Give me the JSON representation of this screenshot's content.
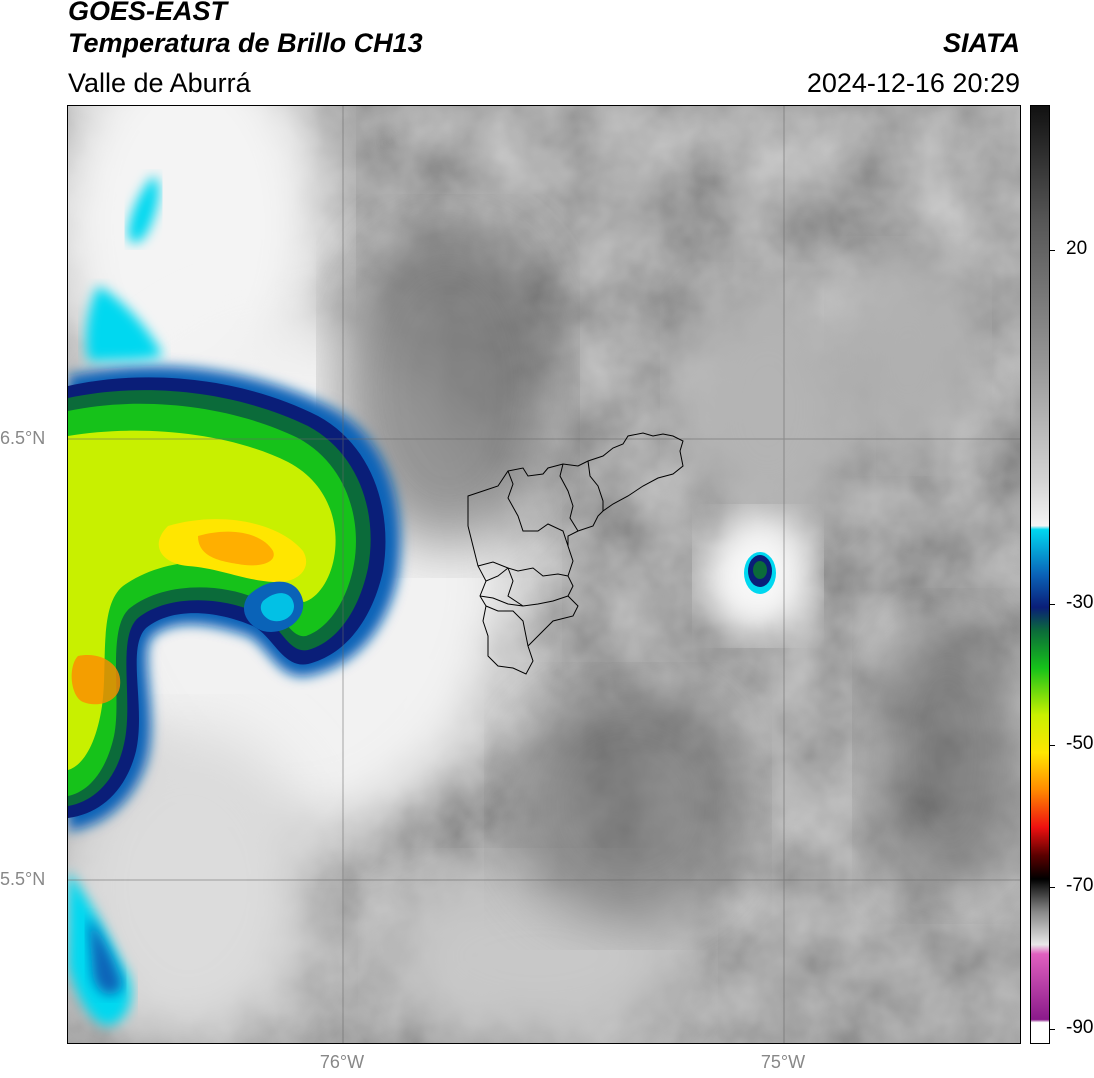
{
  "header": {
    "satellite": "GOES-EAST",
    "product": "Temperatura de Brillo CH13",
    "region": "Valle de Aburrá",
    "agency": "SIATA",
    "datetime": "2024-12-16 20:29"
  },
  "map": {
    "lat_labels": [
      "6.5°N",
      "5.5°N"
    ],
    "lon_labels": [
      "76°W",
      "75°W"
    ],
    "grid": true,
    "basemap": "grayscale-cloud-top-brightness-temperature",
    "overlay": "valle-de-aburra-municipal-boundaries"
  },
  "colorbar": {
    "tick_labels": [
      "20",
      "-30",
      "-50",
      "-70",
      "-90"
    ],
    "colors": {
      "warm_black": "#111111",
      "mid_gray": "#888888",
      "light_gray": "#f0f0f0",
      "cyan": "#00d8f0",
      "blue": "#0a63b8",
      "navy": "#0a1e78",
      "dark_green": "#0b6b3a",
      "green": "#16c21a",
      "yellow_green": "#c8f000",
      "yellow": "#ffe600",
      "orange": "#ff8a00",
      "red": "#ee1010",
      "dark_red": "#5a0000",
      "black": "#000000",
      "pink": "#e060c0",
      "purple": "#8a1a8a",
      "white": "#ffffff"
    }
  }
}
